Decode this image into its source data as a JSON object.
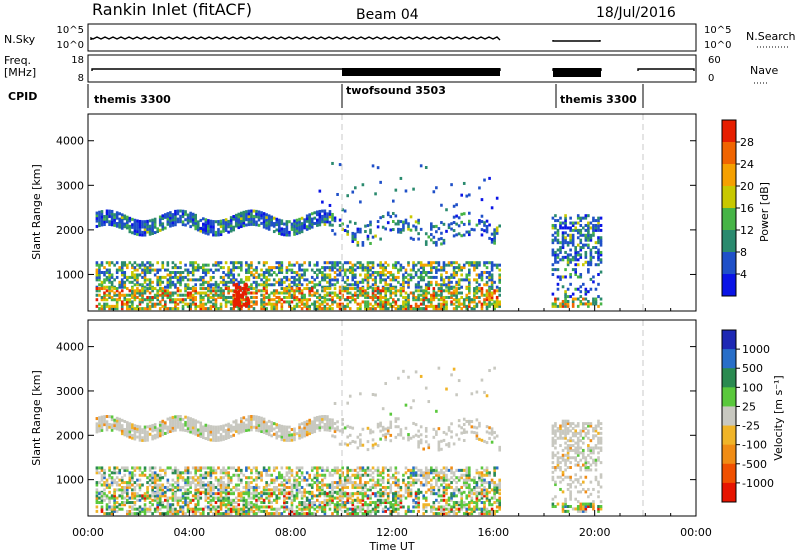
{
  "header": {
    "station": "Rankin Inlet (fitACF)",
    "beam": "Beam 04",
    "date": "18/Jul/2016"
  },
  "strips": {
    "nsky": {
      "label": "N.Sky",
      "ticks": [
        "10^5",
        "10^0"
      ]
    },
    "nsearch": {
      "label": "N.Search",
      "ticks": [
        "10^5",
        "10^0"
      ]
    },
    "freq": {
      "label_line1": "Freq.",
      "label_line2": "[MHz]",
      "ticks": [
        "18",
        "8"
      ]
    },
    "nave": {
      "label": "Nave",
      "ticks": [
        "60",
        "0"
      ]
    },
    "cpid": {
      "label": "CPID",
      "segments": [
        "themis 3300",
        "twofsound 3503",
        "themis 3300"
      ]
    }
  },
  "chart_data": [
    {
      "type": "heatmap",
      "name": "power",
      "xlabel": "Time UT",
      "ylabel": "Slant Range [km]",
      "xticks": [
        "00:00",
        "04:00",
        "08:00",
        "12:00",
        "16:00",
        "20:00",
        "00:00"
      ],
      "x_hours": [
        0,
        4,
        8,
        12,
        16,
        20,
        24
      ],
      "yticks": [
        1000,
        2000,
        3000,
        4000
      ],
      "ylim": [
        180,
        4600
      ],
      "colorbar": {
        "label": "Power [dB]",
        "ticks": [
          "4",
          "8",
          "12",
          "16",
          "20",
          "24",
          "28"
        ],
        "colors": [
          "#0a14e6",
          "#1f50c8",
          "#2a8a6e",
          "#46b446",
          "#c8c800",
          "#f5a000",
          "#f06400",
          "#e61e00"
        ]
      }
    },
    {
      "type": "heatmap",
      "name": "velocity",
      "xlabel": "Time UT",
      "ylabel": "Slant Range [km]",
      "xticks": [
        "00:00",
        "04:00",
        "08:00",
        "12:00",
        "16:00",
        "20:00",
        "00:00"
      ],
      "x_hours": [
        0,
        4,
        8,
        12,
        16,
        20,
        24
      ],
      "yticks": [
        1000,
        2000,
        3000,
        4000
      ],
      "ylim": [
        180,
        4600
      ],
      "colorbar": {
        "label": "Velocity [m s⁻¹]",
        "ticks": [
          "1000",
          "500",
          "100",
          "25",
          "-25",
          "-100",
          "-500",
          "-1000"
        ],
        "colors": [
          "#1e28b4",
          "#286ec8",
          "#2a8a50",
          "#5ac83c",
          "#c8c8c0",
          "#f0b428",
          "#f08c14",
          "#f05000",
          "#e61400"
        ]
      }
    }
  ],
  "colors": {
    "gray_ground": "#c8c8c0",
    "power_blue": "#1f50c8",
    "power_red": "#e61e00"
  }
}
